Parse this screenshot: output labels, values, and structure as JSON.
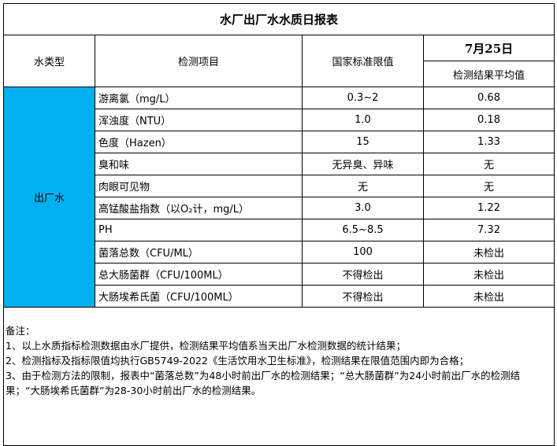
{
  "title": "水厂出厂水水质日报表",
  "headers": {
    "water_type": "水类型",
    "item": "检测项目",
    "limit": "国家标准限值",
    "date": "7月25日",
    "avg": "检测结果平均值"
  },
  "water_type": "出厂水",
  "type_color": "#00b0f0",
  "rows": [
    {
      "item": "游离氯（mg/L）",
      "limit": "0.3~2",
      "value": "0.68"
    },
    {
      "item": "浑浊度（NTU）",
      "limit": "1.0",
      "value": "0.18"
    },
    {
      "item": "色度（Hazen）",
      "limit": "15",
      "value": "1.33"
    },
    {
      "item": "臭和味",
      "limit": "无异臭、异味",
      "value": "无"
    },
    {
      "item": "肉眼可见物",
      "limit": "无",
      "value": "无"
    },
    {
      "item": "高锰酸盐指数（以O₂计，mg/L）",
      "limit": "3.0",
      "value": "1.22"
    },
    {
      "item": "PH",
      "limit": "6.5~8.5",
      "value": "7.32"
    },
    {
      "item": "菌落总数（CFU/ML）",
      "limit": "100",
      "value": "未检出"
    },
    {
      "item": "总大肠菌群（CFU/100ML）",
      "limit": "不得检出",
      "value": "未检出"
    },
    {
      "item": "大肠埃希氏菌（CFU/100ML）",
      "limit": "不得检出",
      "value": "未检出"
    }
  ],
  "notes": [
    "备注：",
    "1、以上水质指标检测数据由水厂提供，检测结果平均值系当天出厂水检测数据的统计结果；",
    "2、检测指标及指标限值均执行GB5749-2022《生活饮用水卫生标准》，检测结果在限值范围内即为合格；",
    "3、由于检测方法的限制，报表中“菌落总数”为48小时前出厂水的检测结果；“总大肠菌群”为24小时前出厂水的检测结果；“大肠埃希氏菌群”为28-30小时前出厂水的检测结果。"
  ]
}
